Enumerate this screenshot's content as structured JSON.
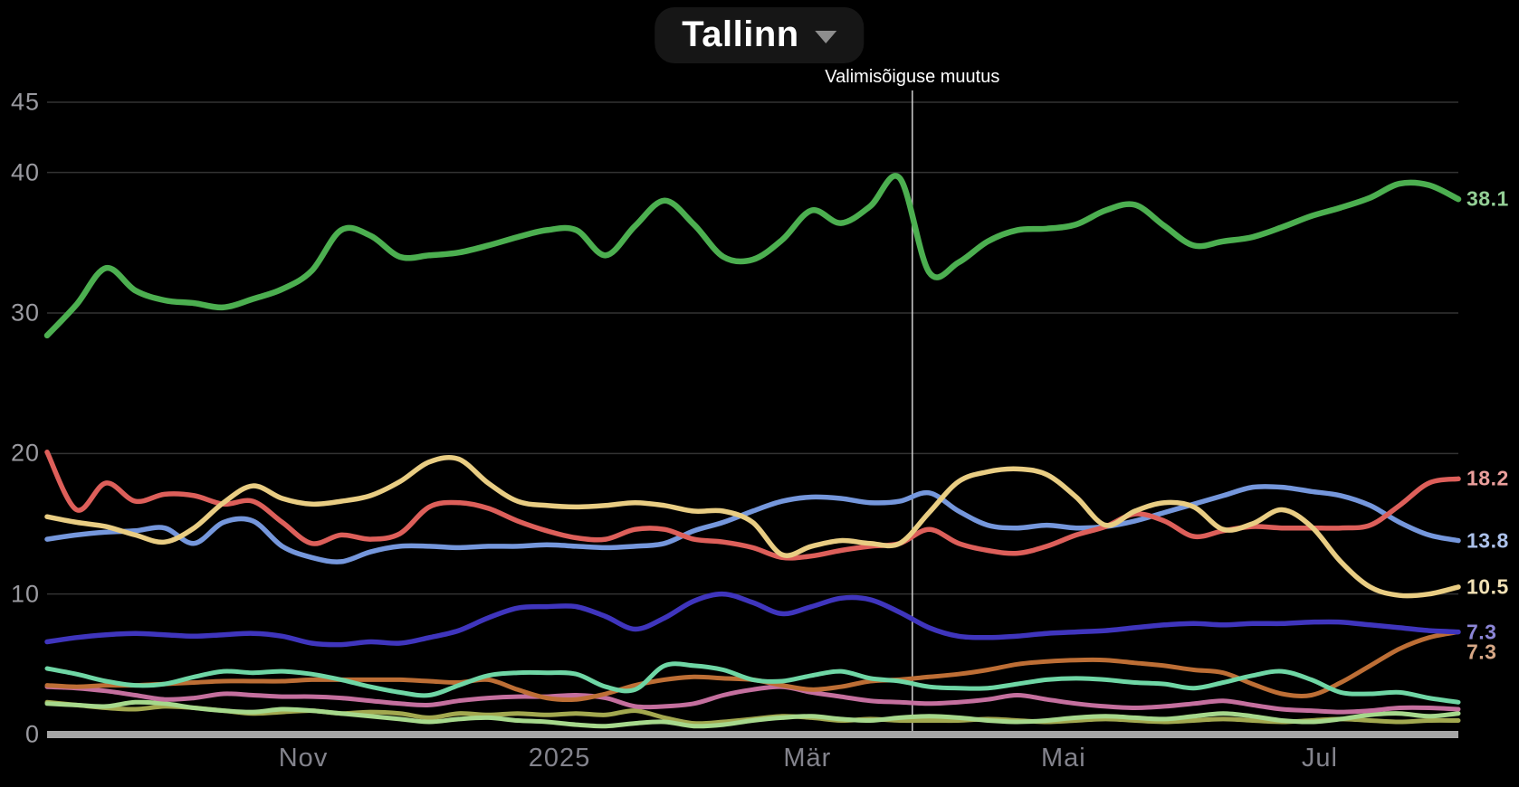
{
  "header": {
    "title": "Tallinn",
    "dropdown_icon": "caret-down"
  },
  "annotation": {
    "label": "Valimisõiguse muutus",
    "date": "2025-03-26"
  },
  "colors": {
    "background": "#000000",
    "gridline": "#333333",
    "zero_axis": "#a6a6a6",
    "event_line": "#d9d9d9",
    "tick_text": "#9a9aa0",
    "month_text": "#83838c"
  },
  "chart_data": {
    "type": "line",
    "title": "Tallinn",
    "grid": true,
    "y_axis": {
      "min": 0,
      "max": 45,
      "ticks": [
        45,
        40,
        30,
        20,
        10,
        0
      ]
    },
    "x_axis": {
      "start_date": "2024-09-01",
      "end_date": "2025-08-03",
      "ticks": [
        {
          "label": "Nov",
          "date": "2024-11-01"
        },
        {
          "label": "2025",
          "date": "2025-01-01"
        },
        {
          "label": "Mär",
          "date": "2025-03-01"
        },
        {
          "label": "Mai",
          "date": "2025-05-01"
        },
        {
          "label": "Jul",
          "date": "2025-07-01"
        }
      ]
    },
    "event_marker": {
      "label": "Valimisõiguse muutus",
      "date": "2025-03-26"
    },
    "dates": [
      "2024-09-01",
      "2024-09-08",
      "2024-09-15",
      "2024-09-22",
      "2024-09-29",
      "2024-10-06",
      "2024-10-13",
      "2024-10-20",
      "2024-10-27",
      "2024-11-03",
      "2024-11-10",
      "2024-11-17",
      "2024-11-24",
      "2024-12-01",
      "2024-12-08",
      "2024-12-15",
      "2024-12-22",
      "2024-12-29",
      "2025-01-05",
      "2025-01-12",
      "2025-01-19",
      "2025-01-26",
      "2025-02-02",
      "2025-02-09",
      "2025-02-16",
      "2025-02-23",
      "2025-03-02",
      "2025-03-09",
      "2025-03-16",
      "2025-03-23",
      "2025-03-30",
      "2025-04-06",
      "2025-04-13",
      "2025-04-20",
      "2025-04-27",
      "2025-05-04",
      "2025-05-11",
      "2025-05-18",
      "2025-05-25",
      "2025-06-01",
      "2025-06-08",
      "2025-06-15",
      "2025-06-22",
      "2025-06-29",
      "2025-07-06",
      "2025-07-13",
      "2025-07-20",
      "2025-07-27",
      "2025-08-03"
    ],
    "series": [
      {
        "name": "green",
        "color": "#4caf50",
        "end_label": "38.1",
        "end_label_offset": 0,
        "values": [
          28.4,
          30.6,
          33.2,
          31.6,
          30.9,
          30.7,
          30.4,
          31.0,
          31.7,
          33.0,
          35.9,
          35.5,
          34.0,
          34.1,
          34.3,
          34.8,
          35.4,
          35.9,
          35.9,
          34.1,
          36.2,
          38.0,
          36.3,
          34.0,
          33.8,
          35.2,
          37.3,
          36.4,
          37.6,
          39.6,
          32.9,
          33.6,
          35.1,
          35.9,
          36.0,
          36.3,
          37.3,
          37.7,
          36.2,
          34.8,
          35.1,
          35.4,
          36.1,
          36.9,
          37.5,
          38.2,
          39.2,
          39.1,
          38.1
        ]
      },
      {
        "name": "red",
        "color": "#dd5f5a",
        "end_label": "18.2",
        "end_label_offset": 0,
        "values": [
          20.1,
          16.0,
          17.9,
          16.6,
          17.1,
          17.0,
          16.4,
          16.6,
          15.1,
          13.6,
          14.2,
          13.9,
          14.3,
          16.2,
          16.5,
          16.1,
          15.2,
          14.5,
          14.0,
          13.9,
          14.6,
          14.6,
          13.9,
          13.7,
          13.3,
          12.6,
          12.7,
          13.1,
          13.4,
          13.6,
          14.6,
          13.6,
          13.1,
          12.9,
          13.4,
          14.2,
          14.8,
          15.7,
          15.2,
          14.1,
          14.5,
          14.8,
          14.7,
          14.7,
          14.7,
          14.9,
          16.3,
          17.9,
          18.2
        ]
      },
      {
        "name": "blue",
        "color": "#7597dc",
        "end_label": "13.8",
        "end_label_offset": 0,
        "values": [
          13.9,
          14.2,
          14.4,
          14.5,
          14.7,
          13.6,
          15.1,
          15.2,
          13.4,
          12.6,
          12.3,
          13.0,
          13.4,
          13.4,
          13.3,
          13.4,
          13.4,
          13.5,
          13.4,
          13.3,
          13.4,
          13.6,
          14.5,
          15.1,
          15.9,
          16.6,
          16.9,
          16.8,
          16.5,
          16.6,
          17.2,
          15.9,
          14.9,
          14.7,
          14.9,
          14.7,
          14.8,
          15.2,
          15.8,
          16.4,
          17.0,
          17.6,
          17.6,
          17.3,
          17.0,
          16.3,
          15.1,
          14.2,
          13.8
        ]
      },
      {
        "name": "yellow",
        "color": "#e9cd83",
        "end_label": "10.5",
        "end_label_offset": 0,
        "values": [
          15.5,
          15.1,
          14.8,
          14.2,
          13.7,
          14.7,
          16.5,
          17.7,
          16.8,
          16.4,
          16.6,
          17.0,
          18.0,
          19.4,
          19.6,
          17.9,
          16.6,
          16.3,
          16.2,
          16.3,
          16.5,
          16.3,
          15.9,
          15.9,
          15.1,
          12.8,
          13.4,
          13.8,
          13.6,
          13.6,
          15.8,
          18.0,
          18.7,
          18.9,
          18.5,
          16.9,
          14.9,
          15.9,
          16.5,
          16.2,
          14.6,
          15.0,
          16.0,
          14.8,
          12.3,
          10.5,
          9.9,
          10.0,
          10.5
        ]
      },
      {
        "name": "indigo",
        "color": "#3f35bd",
        "end_label": "7.3",
        "end_label_offset": 0,
        "values": [
          6.6,
          6.9,
          7.1,
          7.2,
          7.1,
          7.0,
          7.1,
          7.2,
          7.0,
          6.5,
          6.4,
          6.6,
          6.5,
          6.9,
          7.4,
          8.3,
          9.0,
          9.1,
          9.1,
          8.4,
          7.5,
          8.3,
          9.5,
          10.0,
          9.4,
          8.6,
          9.1,
          9.7,
          9.6,
          8.7,
          7.6,
          7.0,
          6.9,
          7.0,
          7.2,
          7.3,
          7.4,
          7.6,
          7.8,
          7.9,
          7.8,
          7.9,
          7.9,
          8.0,
          8.0,
          7.8,
          7.6,
          7.4,
          7.3
        ]
      },
      {
        "name": "orange",
        "color": "#bd6e35",
        "end_label": "7.3",
        "end_label_offset": 22,
        "values": [
          3.5,
          3.4,
          3.5,
          3.5,
          3.6,
          3.7,
          3.8,
          3.8,
          3.8,
          3.9,
          3.9,
          3.9,
          3.9,
          3.8,
          3.7,
          3.9,
          3.2,
          2.6,
          2.5,
          2.9,
          3.5,
          3.9,
          4.1,
          4.0,
          3.9,
          3.5,
          3.2,
          3.4,
          3.8,
          3.9,
          4.1,
          4.3,
          4.6,
          5.0,
          5.2,
          5.3,
          5.3,
          5.1,
          4.9,
          4.6,
          4.4,
          3.6,
          2.9,
          2.8,
          3.7,
          4.9,
          6.1,
          6.9,
          7.3
        ]
      },
      {
        "name": "teal",
        "color": "#6fd6a5",
        "end_label": null,
        "end_label_offset": 0,
        "values": [
          4.7,
          4.3,
          3.8,
          3.5,
          3.6,
          4.1,
          4.5,
          4.4,
          4.5,
          4.3,
          3.9,
          3.4,
          3.0,
          2.8,
          3.5,
          4.2,
          4.4,
          4.4,
          4.3,
          3.4,
          3.2,
          4.9,
          4.9,
          4.6,
          3.9,
          3.8,
          4.2,
          4.5,
          4.0,
          3.8,
          3.4,
          3.3,
          3.3,
          3.6,
          3.9,
          4.0,
          3.9,
          3.7,
          3.6,
          3.3,
          3.7,
          4.2,
          4.5,
          3.9,
          3.0,
          2.9,
          3.0,
          2.6,
          2.3
        ]
      },
      {
        "name": "pink",
        "color": "#c46f9e",
        "end_label": null,
        "end_label_offset": 0,
        "values": [
          3.4,
          3.3,
          3.1,
          2.8,
          2.5,
          2.6,
          2.9,
          2.8,
          2.7,
          2.7,
          2.6,
          2.4,
          2.2,
          2.1,
          2.4,
          2.6,
          2.7,
          2.7,
          2.8,
          2.6,
          2.0,
          2.0,
          2.2,
          2.8,
          3.2,
          3.4,
          3.0,
          2.7,
          2.4,
          2.3,
          2.2,
          2.3,
          2.5,
          2.8,
          2.5,
          2.2,
          2.0,
          1.9,
          2.0,
          2.2,
          2.4,
          2.1,
          1.8,
          1.7,
          1.6,
          1.7,
          1.9,
          1.9,
          1.8
        ]
      },
      {
        "name": "light-green",
        "color": "#a6d88c",
        "end_label": null,
        "end_label_offset": 0,
        "values": [
          2.2,
          2.1,
          2.0,
          2.3,
          2.2,
          1.9,
          1.7,
          1.6,
          1.8,
          1.7,
          1.5,
          1.3,
          1.1,
          0.9,
          1.1,
          1.2,
          1.0,
          0.9,
          0.7,
          0.6,
          0.8,
          0.9,
          0.6,
          0.7,
          1.0,
          1.2,
          1.3,
          1.1,
          1.0,
          1.2,
          1.3,
          1.2,
          1.0,
          0.9,
          1.0,
          1.2,
          1.3,
          1.2,
          1.1,
          1.3,
          1.5,
          1.3,
          1.0,
          0.9,
          1.1,
          1.4,
          1.5,
          1.3,
          1.5
        ]
      },
      {
        "name": "olive",
        "color": "#a2a84f",
        "end_label": null,
        "end_label_offset": 0,
        "values": [
          2.3,
          2.1,
          1.9,
          1.8,
          2.0,
          1.9,
          1.7,
          1.5,
          1.6,
          1.7,
          1.5,
          1.6,
          1.5,
          1.2,
          1.5,
          1.4,
          1.5,
          1.4,
          1.5,
          1.4,
          1.7,
          1.2,
          0.8,
          0.9,
          1.1,
          1.3,
          1.2,
          1.0,
          1.1,
          1.0,
          1.0,
          1.0,
          1.1,
          1.0,
          0.9,
          1.0,
          1.1,
          1.0,
          0.9,
          1.0,
          1.1,
          1.0,
          0.9,
          1.0,
          1.1,
          1.0,
          0.9,
          1.0,
          1.0
        ]
      }
    ]
  }
}
